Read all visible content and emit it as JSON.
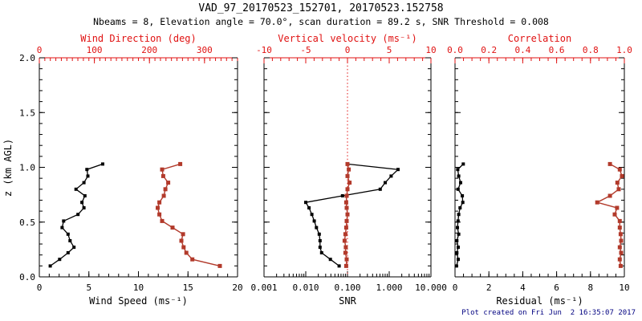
{
  "header": {
    "title": "VAD_97_20170523_152701, 20170523.152758",
    "subtitle": "Nbeams = 8, Elevation angle = 70.0°, scan duration = 89.2 s, SNR Threshold = 0.008"
  },
  "footer": {
    "created_text": "Plot created on Fri Jun  2 16:35:07 2017"
  },
  "colors": {
    "axis_black": "#000000",
    "axis_red": "#e01212",
    "curve_black": "#000000",
    "curve_red": "#b23a2b",
    "footer_navy": "#000080",
    "background": "#ffffff"
  },
  "y_axis": {
    "label": "z (km AGL)",
    "range": [
      0,
      2
    ],
    "tick_values": [
      0,
      0.5,
      1.0,
      1.5,
      2.0
    ],
    "tick_labels": [
      "0.0",
      "0.5",
      "1.0",
      "1.5",
      "2.0"
    ],
    "minor_step": 0.1
  },
  "chart_data": [
    {
      "type": "line",
      "name": "wind-panel",
      "show_y_tick_labels": true,
      "z": [
        0.1,
        0.16,
        0.22,
        0.27,
        0.33,
        0.39,
        0.45,
        0.51,
        0.57,
        0.63,
        0.68,
        0.74,
        0.8,
        0.86,
        0.92,
        0.98,
        1.03
      ],
      "bottom_axis": {
        "label": "Wind Speed (ms⁻¹)",
        "scale": "linear",
        "range": [
          0,
          20
        ],
        "tick_values": [
          0,
          5,
          10,
          15,
          20
        ],
        "tick_labels": [
          "0",
          "5",
          "10",
          "15",
          "20"
        ],
        "minor_step": 1,
        "color": "black"
      },
      "top_axis": {
        "label": "Wind Direction (deg)",
        "scale": "linear",
        "range": [
          0,
          360
        ],
        "tick_values": [
          0,
          100,
          200,
          300
        ],
        "tick_labels": [
          "0",
          "100",
          "200",
          "300"
        ],
        "minor_step": 10,
        "color": "red"
      },
      "series": [
        {
          "name": "wind-speed",
          "axis": "bottom",
          "color": "black",
          "values": [
            1.1,
            2.05,
            2.9,
            3.5,
            3.1,
            2.9,
            2.3,
            2.45,
            3.9,
            4.5,
            4.3,
            4.6,
            3.7,
            4.5,
            4.9,
            4.8,
            6.4
          ]
        },
        {
          "name": "wind-direction",
          "axis": "top",
          "color": "red",
          "values": [
            328,
            278,
            267,
            262,
            258,
            261,
            242,
            223,
            218,
            215,
            218,
            226,
            229,
            234,
            225,
            223,
            256
          ]
        }
      ]
    },
    {
      "type": "line",
      "name": "snr-panel",
      "show_y_tick_labels": false,
      "z": [
        0.1,
        0.16,
        0.22,
        0.27,
        0.33,
        0.39,
        0.45,
        0.51,
        0.57,
        0.63,
        0.68,
        0.74,
        0.8,
        0.86,
        0.92,
        0.98,
        1.03
      ],
      "bottom_axis": {
        "label": "SNR",
        "scale": "log",
        "range": [
          0.001,
          10
        ],
        "tick_values": [
          0.001,
          0.01,
          0.1,
          1,
          10
        ],
        "tick_labels": [
          "0.001",
          "0.010",
          "0.100",
          "1.000",
          "10.000"
        ],
        "color": "black"
      },
      "top_axis": {
        "label": "Vertical velocity (ms⁻¹)",
        "scale": "linear",
        "range": [
          -10,
          10
        ],
        "tick_values": [
          -10,
          -5,
          0,
          5,
          10
        ],
        "tick_labels": [
          "-10",
          "-5",
          "0",
          "5",
          "10"
        ],
        "minor_step": 1,
        "color": "red"
      },
      "reference_line": {
        "axis": "top",
        "value": 0,
        "style": "dotted",
        "color": "red"
      },
      "series": [
        {
          "name": "snr",
          "axis": "bottom",
          "color": "black",
          "values": [
            0.063,
            0.039,
            0.024,
            0.022,
            0.022,
            0.021,
            0.018,
            0.016,
            0.014,
            0.012,
            0.01,
            0.076,
            0.61,
            0.8,
            1.11,
            1.63,
            0.1
          ]
        },
        {
          "name": "vertical-velocity",
          "axis": "top",
          "color": "red",
          "values": [
            -0.15,
            -0.1,
            -0.25,
            -0.2,
            -0.35,
            -0.25,
            -0.15,
            -0.1,
            0.0,
            -0.1,
            -0.15,
            -0.1,
            0.0,
            0.25,
            0.0,
            0.15,
            0.0
          ]
        }
      ]
    },
    {
      "type": "line",
      "name": "residual-panel",
      "show_y_tick_labels": false,
      "z": [
        0.1,
        0.16,
        0.22,
        0.27,
        0.33,
        0.39,
        0.45,
        0.51,
        0.57,
        0.63,
        0.68,
        0.74,
        0.8,
        0.86,
        0.92,
        0.98,
        1.03
      ],
      "bottom_axis": {
        "label": "Residual (ms⁻¹)",
        "scale": "linear",
        "range": [
          0,
          10
        ],
        "tick_values": [
          0,
          2,
          4,
          6,
          8,
          10
        ],
        "tick_labels": [
          "0",
          "2",
          "4",
          "6",
          "8",
          "10"
        ],
        "minor_step": 0.5,
        "color": "black"
      },
      "top_axis": {
        "label": "Correlation",
        "scale": "linear",
        "range": [
          0,
          1
        ],
        "tick_values": [
          0,
          0.2,
          0.4,
          0.6,
          0.8,
          1.0
        ],
        "tick_labels": [
          "0.0",
          "0.2",
          "0.4",
          "0.6",
          "0.8",
          "1.0"
        ],
        "minor_step": 0.05,
        "color": "red"
      },
      "series": [
        {
          "name": "residual",
          "axis": "bottom",
          "color": "black",
          "values": [
            0.09,
            0.19,
            0.11,
            0.19,
            0.11,
            0.22,
            0.14,
            0.18,
            0.22,
            0.3,
            0.46,
            0.43,
            0.18,
            0.33,
            0.22,
            0.16,
            0.49
          ]
        },
        {
          "name": "correlation",
          "axis": "top",
          "color": "red",
          "values": [
            0.978,
            0.973,
            0.981,
            0.973,
            0.981,
            0.978,
            0.973,
            0.973,
            0.943,
            0.957,
            0.84,
            0.915,
            0.967,
            0.959,
            0.986,
            0.973,
            0.915
          ]
        }
      ]
    }
  ]
}
